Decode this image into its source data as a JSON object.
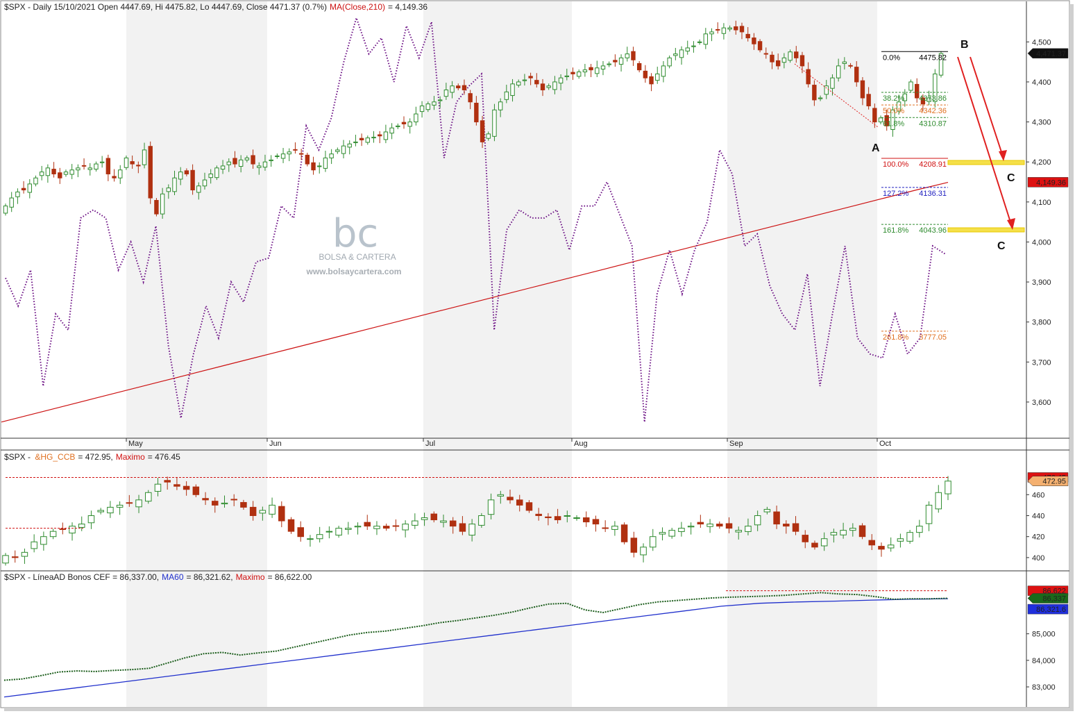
{
  "chart_data": [
    {
      "type": "candlestick",
      "panel": "main",
      "symbol": "$SPX",
      "header_prefix": "$SPX - Daily 15/10/2021 Open 4447.69, Hi 4475.82, Lo 4447.69, Close 4471.37 (0.7%)",
      "ma_label": "MA(Close,210)",
      "ma_value_text": "= 4,149.36",
      "ylim": [
        3520,
        4570
      ],
      "y_ticks": [
        "4,500",
        "4,400",
        "4,300",
        "4,200",
        "4,100",
        "4,000",
        "3,900",
        "3,800",
        "3,700",
        "3,600"
      ],
      "y_tick_values": [
        4500,
        4400,
        4300,
        4200,
        4100,
        4000,
        3900,
        3800,
        3700,
        3600
      ],
      "months": [
        "May",
        "Jun",
        "Jul",
        "Aug",
        "Sep",
        "Oct"
      ],
      "price_close": [
        4090,
        4110,
        4125,
        4130,
        4145,
        4160,
        4175,
        4185,
        4170,
        4160,
        4175,
        4180,
        4185,
        4190,
        4185,
        4195,
        4200,
        4170,
        4160,
        4180,
        4210,
        4195,
        4190,
        4230,
        4110,
        4070,
        4120,
        4135,
        4160,
        4175,
        4170,
        4130,
        4140,
        4155,
        4170,
        4185,
        4190,
        4200,
        4195,
        4205,
        4210,
        4195,
        4190,
        4200,
        4205,
        4215,
        4220,
        4225,
        4230,
        4220,
        4195,
        4180,
        4190,
        4210,
        4220,
        4230,
        4240,
        4245,
        4250,
        4255,
        4260,
        4262,
        4265,
        4275,
        4285,
        4290,
        4295,
        4300,
        4320,
        4340,
        4345,
        4350,
        4355,
        4380,
        4390,
        4385,
        4380,
        4350,
        4300,
        4250,
        4270,
        4330,
        4350,
        4375,
        4395,
        4400,
        4405,
        4410,
        4395,
        4380,
        4390,
        4400,
        4410,
        4415,
        4420,
        4425,
        4430,
        4430,
        4435,
        4440,
        4445,
        4450,
        4460,
        4470,
        4455,
        4430,
        4410,
        4395,
        4420,
        4440,
        4460,
        4470,
        4480,
        4485,
        4490,
        4500,
        4520,
        4525,
        4530,
        4535,
        4535,
        4530,
        4525,
        4510,
        4495,
        4480,
        4470,
        4450,
        4440,
        4460,
        4475,
        4460,
        4440,
        4395,
        4355,
        4360,
        4390,
        4410,
        4440,
        4450,
        4440,
        4400,
        4360,
        4340,
        4300,
        4310,
        4290,
        4330,
        4350,
        4370,
        4400,
        4360,
        4345,
        4360,
        4420,
        4471
      ],
      "ma210": [
        3550,
        3570,
        3590,
        3610,
        3630,
        3650,
        3670,
        3690,
        3710,
        3730,
        3750,
        3770,
        3790,
        3810,
        3830,
        3850,
        3870,
        3890,
        3910,
        3930,
        3950,
        3970,
        3990,
        4010,
        4030,
        4050,
        4070,
        4090,
        4110,
        4130,
        4149
      ],
      "breadth_line": [
        3910,
        3840,
        3930,
        3640,
        3820,
        3780,
        4060,
        4080,
        4060,
        3930,
        4000,
        3900,
        4040,
        3740,
        3560,
        3720,
        3840,
        3760,
        3900,
        3850,
        3950,
        3960,
        4090,
        4060,
        4290,
        4230,
        4310,
        4450,
        4560,
        4470,
        4510,
        4400,
        4540,
        4460,
        4550,
        4210,
        4350,
        4390,
        4420,
        3780,
        4030,
        4080,
        4060,
        4060,
        4080,
        3980,
        4090,
        4090,
        4150,
        4070,
        3990,
        3550,
        3870,
        3980,
        3870,
        3980,
        4050,
        4230,
        4170,
        3990,
        4020,
        3890,
        3820,
        3780,
        3920,
        3640,
        3820,
        3990,
        3760,
        3720,
        3710,
        3820,
        3720,
        3760,
        3990,
        3970
      ],
      "fib_levels": [
        {
          "label": "0.0%",
          "value_text": "4475.82",
          "value": 4475.82,
          "color": "#000000"
        },
        {
          "label": "38.2%",
          "value_text": "4373.86",
          "value": 4373.86,
          "color": "#2e8b2e"
        },
        {
          "label": "50.0%",
          "value_text": "4342.36",
          "value": 4342.36,
          "color": "#e07020"
        },
        {
          "label": "61.8%",
          "value_text": "4310.87",
          "value": 4310.87,
          "color": "#2e8b2e"
        },
        {
          "label": "100.0%",
          "value_text": "4208.91",
          "value": 4208.91,
          "color": "#d01010"
        },
        {
          "label": "127.2%",
          "value_text": "4136.31",
          "value": 4136.31,
          "color": "#2020c0"
        },
        {
          "label": "161.8%",
          "value_text": "4043.96",
          "value": 4043.96,
          "color": "#2e8b2e"
        },
        {
          "label": "261.8%",
          "value_text": "3777.05",
          "value": 3777.05,
          "color": "#e07020"
        }
      ],
      "annotations": [
        "A",
        "B",
        "C",
        "C"
      ],
      "last_price_tag": "4,471.37",
      "ma_tag": "4,149.36",
      "watermark": {
        "logo": "bc",
        "line1": "BOLSA & CARTERA",
        "line2": "www.bolsaycartera.com"
      }
    },
    {
      "type": "candlestick",
      "panel": "copper",
      "header_prefix": "$SPX - ",
      "series_label": "&HG_CCB",
      "series_value_text": "= 472.95,",
      "max_label": "Maximo",
      "max_value_text": "= 476.45",
      "ylim": [
        390,
        488
      ],
      "y_ticks": [
        "460",
        "440",
        "420",
        "400"
      ],
      "y_tick_values": [
        460,
        440,
        420,
        400
      ],
      "close": [
        402,
        400,
        405,
        415,
        420,
        425,
        427,
        430,
        432,
        440,
        445,
        448,
        450,
        452,
        455,
        462,
        470,
        472,
        468,
        465,
        460,
        455,
        450,
        452,
        455,
        448,
        440,
        445,
        450,
        435,
        425,
        420,
        418,
        422,
        425,
        428,
        428,
        430,
        430,
        430,
        428,
        430,
        432,
        435,
        438,
        436,
        435,
        430,
        425,
        432,
        440,
        455,
        460,
        455,
        450,
        445,
        440,
        438,
        436,
        440,
        438,
        434,
        432,
        428,
        430,
        415,
        405,
        410,
        420,
        424,
        426,
        428,
        430,
        432,
        432,
        430,
        428,
        426,
        430,
        440,
        446,
        432,
        430,
        425,
        415,
        410,
        418,
        424,
        426,
        428,
        420,
        412,
        408,
        412,
        418,
        424,
        430,
        450,
        462,
        472.95
      ],
      "max_line": 476.45,
      "old_max": 428,
      "last_tag": "472.95",
      "max_tag": "476.45"
    },
    {
      "type": "line",
      "panel": "ad_line",
      "header_prefix": "$SPX - LíneaAD Bonos CEF = 86,337.00,",
      "ma_label": "MA60",
      "ma_value_text": "= 86,321.62,",
      "max_label": "Maximo",
      "max_value_text": "= 86,622.00",
      "ylim": [
        82400,
        86900
      ],
      "y_ticks": [
        "85,000",
        "84,000",
        "83,000"
      ],
      "y_tick_values": [
        85000,
        84000,
        83000
      ],
      "ad_line": [
        83250,
        83300,
        83420,
        83560,
        83600,
        83580,
        83620,
        83650,
        83700,
        83900,
        84100,
        84250,
        84300,
        84200,
        84280,
        84350,
        84500,
        84650,
        84800,
        84950,
        85050,
        85100,
        85200,
        85300,
        85420,
        85500,
        85600,
        85700,
        85820,
        85980,
        86120,
        86150,
        85900,
        85800,
        85950,
        86100,
        86200,
        86250,
        86300,
        86350,
        86380,
        86400,
        86420,
        86450,
        86500,
        86550,
        86500,
        86480,
        86400,
        86300,
        86320,
        86320,
        86337
      ],
      "ma60": [
        82620,
        82800,
        82980,
        83160,
        83340,
        83520,
        83700,
        83880,
        84060,
        84240,
        84420,
        84600,
        84780,
        84960,
        85140,
        85320,
        85500,
        85680,
        85860,
        86040,
        86150,
        86200,
        86230,
        86270,
        86300,
        86321.62
      ],
      "max_line": 86622,
      "ad_tag": "86,337",
      "ma_tag": "86,321.6",
      "max_tag": "86,622"
    }
  ],
  "colors": {
    "up_body": "#ffffff",
    "up_border": "#2e8b2e",
    "down_body": "#b03010",
    "ma_main": "#cc1111",
    "breadth": "#6a0d83",
    "ad": "#1a5c1a",
    "ma_ad": "#1f2fcc",
    "arrow": "#e02020",
    "zone": "#f5e04a",
    "shade": "#f2f2f2"
  }
}
